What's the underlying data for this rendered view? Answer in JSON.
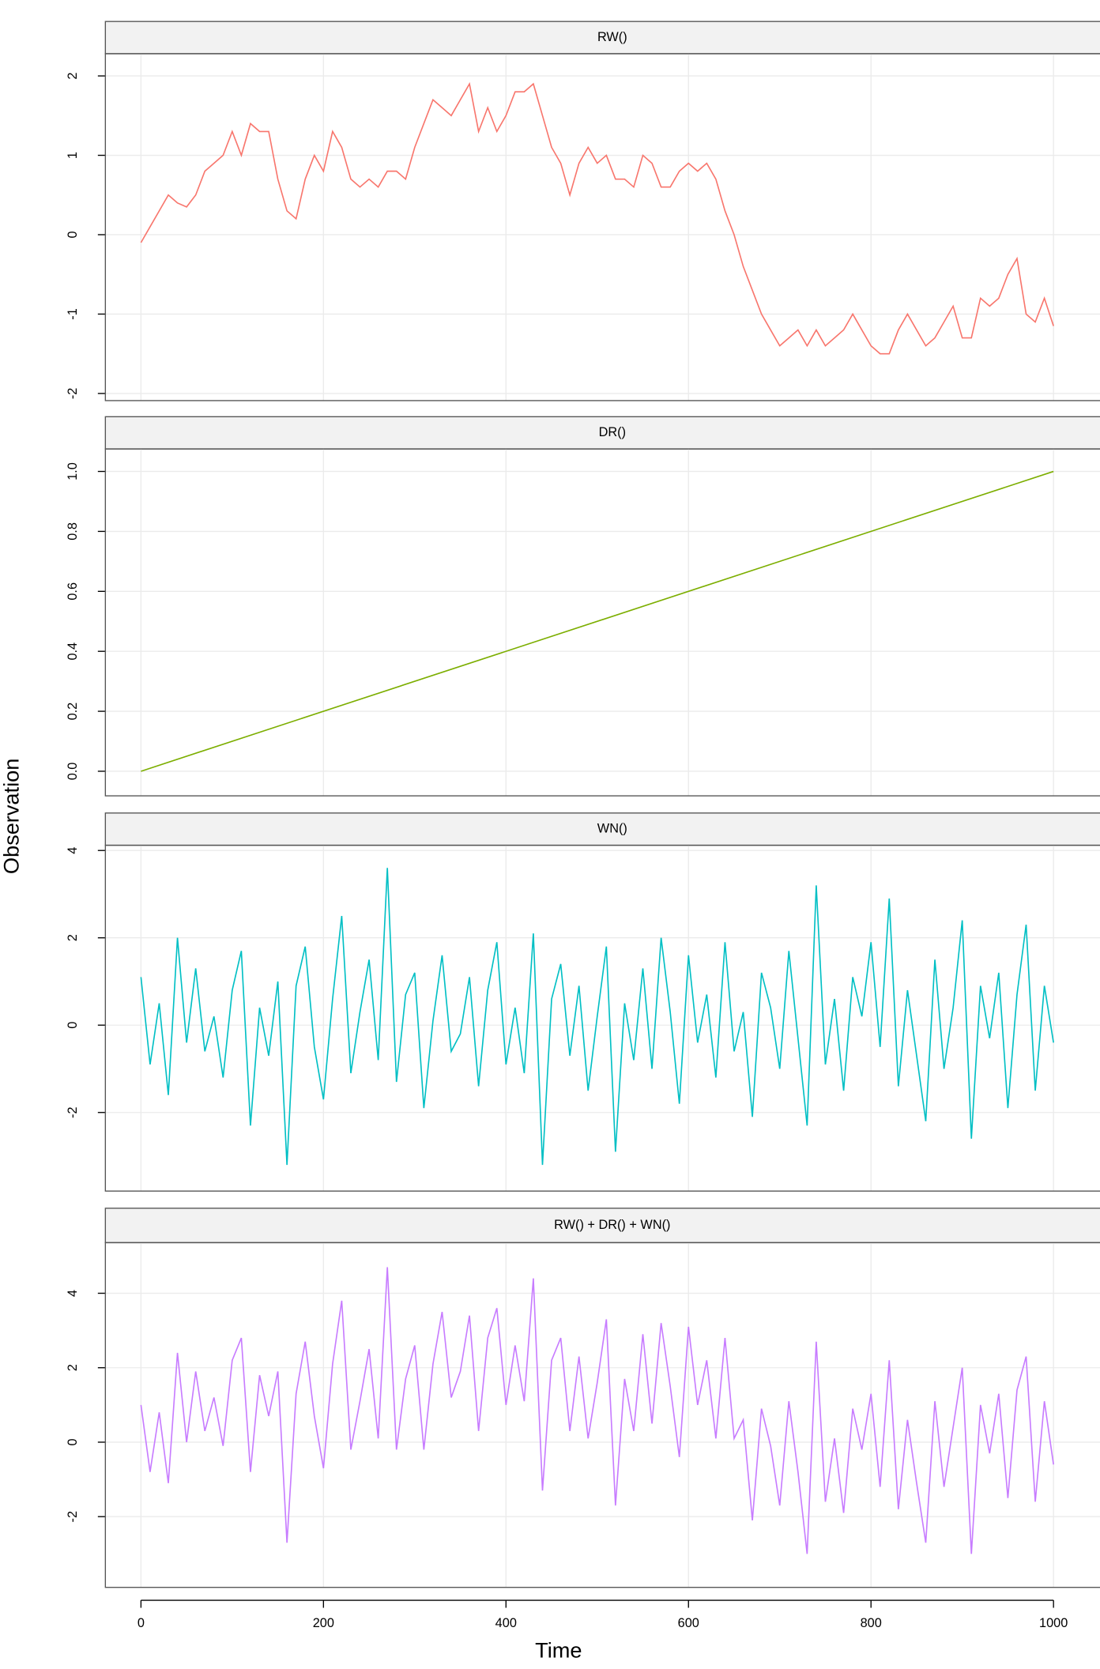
{
  "chart_data": [
    {
      "type": "line",
      "title": "RW()",
      "x": [
        0,
        10,
        20,
        30,
        40,
        50,
        60,
        70,
        80,
        90,
        100,
        110,
        120,
        130,
        140,
        150,
        160,
        170,
        180,
        190,
        200,
        210,
        220,
        230,
        240,
        250,
        260,
        270,
        280,
        290,
        300,
        310,
        320,
        330,
        340,
        350,
        360,
        370,
        380,
        390,
        400,
        410,
        420,
        430,
        440,
        450,
        460,
        470,
        480,
        490,
        500,
        510,
        520,
        530,
        540,
        550,
        560,
        570,
        580,
        590,
        600,
        610,
        620,
        630,
        640,
        650,
        660,
        670,
        680,
        690,
        700,
        710,
        720,
        730,
        740,
        750,
        760,
        770,
        780,
        790,
        800,
        810,
        820,
        830,
        840,
        850,
        860,
        870,
        880,
        890,
        900,
        910,
        920,
        930,
        940,
        950,
        960,
        970,
        980,
        990,
        1000
      ],
      "series": [
        {
          "name": "RW()",
          "color": "#F8766D",
          "values": [
            -0.1,
            0.1,
            0.3,
            0.5,
            0.4,
            0.35,
            0.5,
            0.8,
            0.9,
            1.0,
            1.3,
            1.0,
            1.4,
            1.3,
            1.3,
            0.7,
            0.3,
            0.2,
            0.7,
            1.0,
            0.8,
            1.3,
            1.1,
            0.7,
            0.6,
            0.7,
            0.6,
            0.8,
            0.8,
            0.7,
            1.1,
            1.4,
            1.7,
            1.6,
            1.5,
            1.7,
            1.9,
            1.3,
            1.6,
            1.3,
            1.5,
            1.8,
            1.8,
            1.9,
            1.5,
            1.1,
            0.9,
            0.5,
            0.9,
            1.1,
            0.9,
            1.0,
            0.7,
            0.7,
            0.6,
            1.0,
            0.9,
            0.6,
            0.6,
            0.8,
            0.9,
            0.8,
            0.9,
            0.7,
            0.3,
            0.0,
            -0.4,
            -0.7,
            -1.0,
            -1.2,
            -1.4,
            -1.3,
            -1.2,
            -1.4,
            -1.2,
            -1.4,
            -1.3,
            -1.2,
            -1.0,
            -1.2,
            -1.4,
            -1.5,
            -1.5,
            -1.2,
            -1.0,
            -1.2,
            -1.4,
            -1.3,
            -1.1,
            -0.9,
            -1.3,
            -1.3,
            -0.8,
            -0.9,
            -0.8,
            -0.5,
            -0.3,
            -1.0,
            -1.1,
            -0.8,
            -1.15
          ]
        }
      ],
      "ylim": [
        -2.09,
        2.28
      ],
      "yticks": [
        -2,
        -1,
        0,
        1,
        2
      ]
    },
    {
      "type": "line",
      "title": "DR()",
      "x": [
        0,
        1000
      ],
      "series": [
        {
          "name": "DR()",
          "color": "#7CAE00",
          "values": [
            0,
            1
          ]
        }
      ],
      "ylim": [
        -0.082,
        1.075
      ],
      "yticks": [
        {
          "value": 0,
          "label": "0.0"
        },
        0.2,
        0.4,
        0.6,
        0.8,
        {
          "value": 1,
          "label": "1.0"
        }
      ]
    },
    {
      "type": "line",
      "title": "WN()",
      "x": [
        0,
        10,
        20,
        30,
        40,
        50,
        60,
        70,
        80,
        90,
        100,
        110,
        120,
        130,
        140,
        150,
        160,
        170,
        180,
        190,
        200,
        210,
        220,
        230,
        240,
        250,
        260,
        270,
        280,
        290,
        300,
        310,
        320,
        330,
        340,
        350,
        360,
        370,
        380,
        390,
        400,
        410,
        420,
        430,
        440,
        450,
        460,
        470,
        480,
        490,
        500,
        510,
        520,
        530,
        540,
        550,
        560,
        570,
        580,
        590,
        600,
        610,
        620,
        630,
        640,
        650,
        660,
        670,
        680,
        690,
        700,
        710,
        720,
        730,
        740,
        750,
        760,
        770,
        780,
        790,
        800,
        810,
        820,
        830,
        840,
        850,
        860,
        870,
        880,
        890,
        900,
        910,
        920,
        930,
        940,
        950,
        960,
        970,
        980,
        990,
        1000
      ],
      "series": [
        {
          "name": "WN()",
          "color": "#00BFC4",
          "values": [
            1.1,
            -0.9,
            0.5,
            -1.6,
            2.0,
            -0.4,
            1.3,
            -0.6,
            0.2,
            -1.2,
            0.8,
            1.7,
            -2.3,
            0.4,
            -0.7,
            1.0,
            -3.2,
            0.9,
            1.8,
            -0.5,
            -1.7,
            0.6,
            2.5,
            -1.1,
            0.3,
            1.5,
            -0.8,
            3.6,
            -1.3,
            0.7,
            1.2,
            -1.9,
            0.1,
            1.6,
            -0.6,
            -0.2,
            1.1,
            -1.4,
            0.8,
            1.9,
            -0.9,
            0.4,
            -1.1,
            2.1,
            -3.2,
            0.6,
            1.4,
            -0.7,
            0.9,
            -1.5,
            0.2,
            1.8,
            -2.9,
            0.5,
            -0.8,
            1.3,
            -1.0,
            2.0,
            0.3,
            -1.8,
            1.6,
            -0.4,
            0.7,
            -1.2,
            1.9,
            -0.6,
            0.3,
            -2.1,
            1.2,
            0.4,
            -1.0,
            1.7,
            -0.3,
            -2.3,
            3.2,
            -0.9,
            0.6,
            -1.5,
            1.1,
            0.2,
            1.9,
            -0.5,
            2.9,
            -1.4,
            0.8,
            -0.7,
            -2.2,
            1.5,
            -1.0,
            0.4,
            2.4,
            -2.6,
            0.9,
            -0.3,
            1.2,
            -1.9,
            0.7,
            2.3,
            -1.5,
            0.9,
            -0.4
          ]
        }
      ],
      "ylim": [
        -3.8,
        4.12
      ],
      "yticks": [
        -2,
        0,
        2,
        4
      ]
    },
    {
      "type": "line",
      "title": "RW() + DR() + WN()",
      "x": [
        0,
        10,
        20,
        30,
        40,
        50,
        60,
        70,
        80,
        90,
        100,
        110,
        120,
        130,
        140,
        150,
        160,
        170,
        180,
        190,
        200,
        210,
        220,
        230,
        240,
        250,
        260,
        270,
        280,
        290,
        300,
        310,
        320,
        330,
        340,
        350,
        360,
        370,
        380,
        390,
        400,
        410,
        420,
        430,
        440,
        450,
        460,
        470,
        480,
        490,
        500,
        510,
        520,
        530,
        540,
        550,
        560,
        570,
        580,
        590,
        600,
        610,
        620,
        630,
        640,
        650,
        660,
        670,
        680,
        690,
        700,
        710,
        720,
        730,
        740,
        750,
        760,
        770,
        780,
        790,
        800,
        810,
        820,
        830,
        840,
        850,
        860,
        870,
        880,
        890,
        900,
        910,
        920,
        930,
        940,
        950,
        960,
        970,
        980,
        990,
        1000
      ],
      "series": [
        {
          "name": "RW() + DR() + WN()",
          "color": "#C77CFF",
          "values": [
            1.0,
            -0.8,
            0.8,
            -1.1,
            2.4,
            0.0,
            1.9,
            0.3,
            1.2,
            -0.1,
            2.2,
            2.8,
            -0.8,
            1.8,
            0.7,
            1.9,
            -2.7,
            1.3,
            2.7,
            0.7,
            -0.7,
            2.1,
            3.8,
            -0.2,
            1.1,
            2.5,
            0.1,
            4.7,
            -0.2,
            1.7,
            2.6,
            -0.2,
            2.1,
            3.5,
            1.2,
            1.9,
            3.4,
            0.3,
            2.8,
            3.6,
            1.0,
            2.6,
            1.1,
            4.4,
            -1.3,
            2.2,
            2.8,
            0.3,
            2.3,
            0.1,
            1.6,
            3.3,
            -1.7,
            1.7,
            0.3,
            2.9,
            0.5,
            3.2,
            1.5,
            -0.4,
            3.1,
            1.0,
            2.2,
            0.1,
            2.8,
            0.1,
            0.6,
            -2.1,
            0.9,
            -0.1,
            -1.7,
            1.1,
            -0.8,
            -3.0,
            2.7,
            -1.6,
            0.1,
            -1.9,
            0.9,
            -0.2,
            1.3,
            -1.2,
            2.2,
            -1.8,
            0.6,
            -1.1,
            -2.7,
            1.1,
            -1.2,
            0.4,
            2.0,
            -3.0,
            1.0,
            -0.3,
            1.3,
            -1.5,
            1.4,
            2.3,
            -1.6,
            1.1,
            -0.6
          ]
        }
      ],
      "ylim": [
        -3.9,
        5.36
      ],
      "yticks": [
        -2,
        0,
        2,
        4
      ]
    }
  ],
  "x_axis": {
    "label": "Time",
    "xlim": [
      -39,
      1072
    ],
    "xticks": [
      0,
      200,
      400,
      600,
      800,
      1000
    ]
  },
  "y_label": "Observation"
}
